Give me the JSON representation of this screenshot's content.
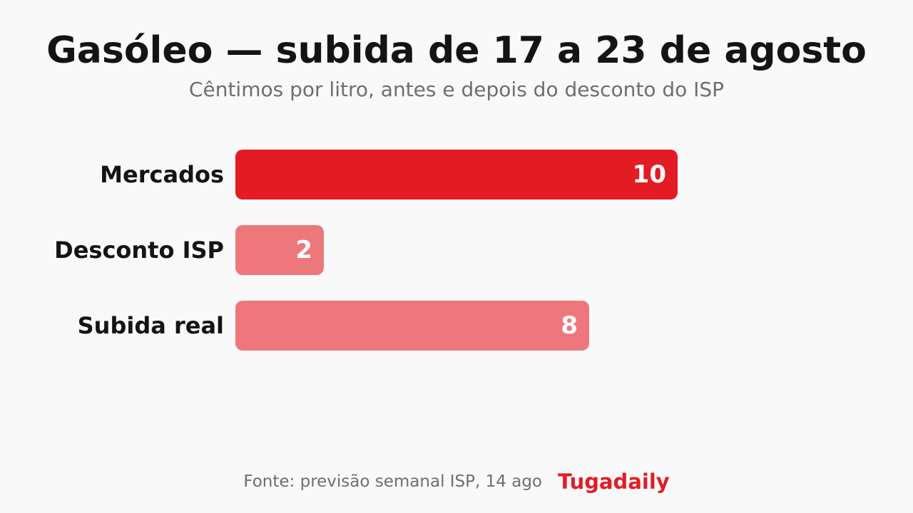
{
  "title": "Gasóleo — subida de 17 a 23 de agosto",
  "subtitle": "Cêntimos por litro, antes e depois do desconto do ISP",
  "colors": {
    "background": "#f9f9f9",
    "primary_bar": "#e31c24",
    "secondary_bar": "#ee777b",
    "label_dark": "#141414",
    "label_light": "#ffffff",
    "muted_text": "#6e6e73",
    "brand": "#e31c24"
  },
  "chart_data": {
    "type": "bar",
    "orientation": "horizontal",
    "categories": [
      "Mercados",
      "Desconto ISP",
      "Subida real"
    ],
    "values": [
      10,
      2,
      8
    ],
    "data_labels": [
      "10",
      "2",
      "8"
    ],
    "bar_colors": [
      "#e31c24",
      "#ee777b",
      "#ee777b"
    ],
    "xlim": [
      0,
      10
    ],
    "grid": false,
    "legend": "none",
    "title": "Gasóleo — subida de 17 a 23 de agosto",
    "subtitle": "Cêntimos por litro, antes e depois do desconto do ISP"
  },
  "footer": {
    "source": "Fonte: previsão semanal ISP, 14 ago",
    "brand": "Tugadaily"
  }
}
